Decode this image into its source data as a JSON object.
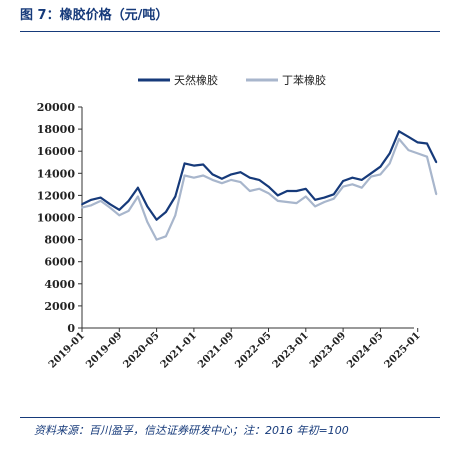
{
  "figure": {
    "title": "图 7：橡胶价格（元/吨）",
    "source": "资料来源：百川盈孚，信达证券研发中心；注：2016 年初=100"
  },
  "chart_data": {
    "type": "line",
    "ylim": [
      0,
      20000
    ],
    "yticks": [
      0,
      2000,
      4000,
      6000,
      8000,
      10000,
      12000,
      14000,
      16000,
      18000,
      20000
    ],
    "xtick_labels": [
      "2019-01",
      "2019-09",
      "2020-05",
      "2021-01",
      "2021-09",
      "2022-05",
      "2023-01",
      "2023-09",
      "2024-05",
      "2025-01"
    ],
    "grid": false,
    "legend_position": "top-center",
    "x": [
      "2019-01",
      "2019-03",
      "2019-05",
      "2019-07",
      "2019-09",
      "2019-11",
      "2020-01",
      "2020-03",
      "2020-05",
      "2020-07",
      "2020-09",
      "2020-11",
      "2021-01",
      "2021-03",
      "2021-05",
      "2021-07",
      "2021-09",
      "2021-11",
      "2022-01",
      "2022-03",
      "2022-05",
      "2022-07",
      "2022-09",
      "2022-11",
      "2023-01",
      "2023-03",
      "2023-05",
      "2023-07",
      "2023-09",
      "2023-11",
      "2024-01",
      "2024-03",
      "2024-05",
      "2024-07",
      "2024-09",
      "2024-11",
      "2025-01",
      "2025-03",
      "2025-05"
    ],
    "series": [
      {
        "name": "天然橡胶",
        "color": "#163a7a",
        "values": [
          11200,
          11600,
          11800,
          11200,
          10700,
          11500,
          12700,
          11000,
          9800,
          10500,
          11900,
          14900,
          14700,
          14800,
          13900,
          13500,
          13900,
          14100,
          13600,
          13400,
          12800,
          12000,
          12400,
          12400,
          12600,
          11600,
          11800,
          12100,
          13300,
          13600,
          13400,
          14000,
          14600,
          15800,
          17800,
          17300,
          16800,
          16700,
          15000
        ]
      },
      {
        "name": "丁苯橡胶",
        "color": "#a8b6cc",
        "values": [
          10900,
          11100,
          11500,
          10900,
          10200,
          10600,
          11900,
          9600,
          8000,
          8300,
          10200,
          13800,
          13600,
          13800,
          13400,
          13100,
          13400,
          13200,
          12400,
          12600,
          12200,
          11500,
          11400,
          11300,
          11900,
          11000,
          11400,
          11700,
          12800,
          13000,
          12700,
          13700,
          13900,
          14900,
          17100,
          16100,
          15800,
          15500,
          12100
        ]
      }
    ]
  }
}
